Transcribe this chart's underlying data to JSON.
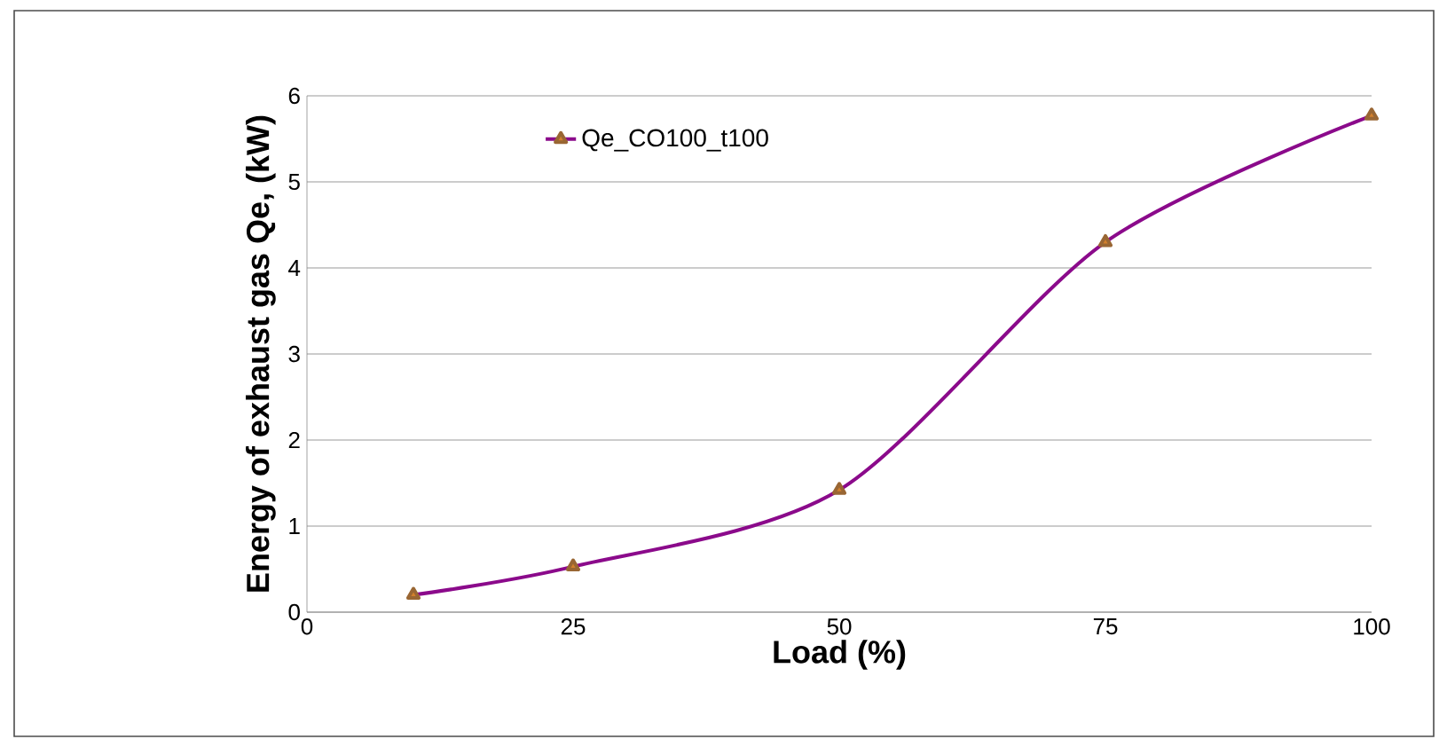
{
  "chart_data": {
    "type": "line",
    "xlabel": "Load (%)",
    "ylabel": "Energy of exhaust gas Qe, (kW)",
    "x": [
      10,
      25,
      50,
      75,
      100
    ],
    "series": [
      {
        "name": "Qe_CO100_t100",
        "color": "#8b0a8b",
        "values": [
          0.2,
          0.53,
          1.42,
          4.3,
          5.77
        ]
      }
    ],
    "xlim": [
      0,
      100
    ],
    "xticks": [
      0,
      25,
      50,
      75,
      100
    ],
    "ylim": [
      0,
      6
    ],
    "yticks": [
      0,
      1,
      2,
      3,
      4,
      5,
      6
    ],
    "grid": "y",
    "legend": "top",
    "marker": "triangle"
  }
}
